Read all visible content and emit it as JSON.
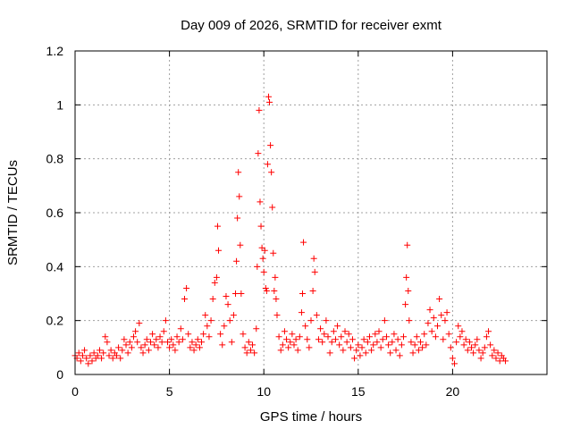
{
  "chart_data": {
    "type": "scatter",
    "title": "Day 009 of 2026, SRMTID for receiver exmt",
    "xlabel": "GPS time / hours",
    "ylabel": "SRMTID / TECUs",
    "xlim": [
      0,
      25
    ],
    "ylim": [
      0,
      1.2
    ],
    "xticks": [
      0,
      5,
      10,
      15,
      20
    ],
    "xtick_labels": [
      "0",
      "5",
      "10",
      "15",
      "20"
    ],
    "yticks": [
      0,
      0.2,
      0.4,
      0.6,
      0.8,
      1.0,
      1.2
    ],
    "ytick_labels": [
      "0",
      "0.2",
      "0.4",
      "0.6",
      "0.8",
      "1",
      "1.2"
    ],
    "grid": true,
    "marker": "+",
    "color": "#ff0000",
    "series": [
      {
        "name": "SRMTID",
        "points": [
          [
            0.0,
            0.07
          ],
          [
            0.1,
            0.06
          ],
          [
            0.2,
            0.08
          ],
          [
            0.3,
            0.05
          ],
          [
            0.4,
            0.07
          ],
          [
            0.5,
            0.09
          ],
          [
            0.6,
            0.06
          ],
          [
            0.7,
            0.04
          ],
          [
            0.8,
            0.07
          ],
          [
            0.9,
            0.05
          ],
          [
            1.0,
            0.08
          ],
          [
            1.1,
            0.06
          ],
          [
            1.2,
            0.07
          ],
          [
            1.3,
            0.09
          ],
          [
            1.4,
            0.06
          ],
          [
            1.5,
            0.08
          ],
          [
            1.6,
            0.14
          ],
          [
            1.7,
            0.12
          ],
          [
            1.8,
            0.07
          ],
          [
            1.9,
            0.09
          ],
          [
            2.0,
            0.06
          ],
          [
            2.1,
            0.08
          ],
          [
            2.2,
            0.07
          ],
          [
            2.3,
            0.1
          ],
          [
            2.4,
            0.06
          ],
          [
            2.5,
            0.09
          ],
          [
            2.6,
            0.13
          ],
          [
            2.7,
            0.11
          ],
          [
            2.8,
            0.08
          ],
          [
            2.9,
            0.12
          ],
          [
            3.0,
            0.1
          ],
          [
            3.1,
            0.14
          ],
          [
            3.2,
            0.16
          ],
          [
            3.3,
            0.12
          ],
          [
            3.4,
            0.19
          ],
          [
            3.5,
            0.1
          ],
          [
            3.6,
            0.08
          ],
          [
            3.7,
            0.11
          ],
          [
            3.8,
            0.13
          ],
          [
            3.9,
            0.09
          ],
          [
            4.0,
            0.12
          ],
          [
            4.1,
            0.15
          ],
          [
            4.2,
            0.11
          ],
          [
            4.3,
            0.13
          ],
          [
            4.4,
            0.1
          ],
          [
            4.5,
            0.14
          ],
          [
            4.6,
            0.12
          ],
          [
            4.7,
            0.16
          ],
          [
            4.8,
            0.2
          ],
          [
            4.9,
            0.12
          ],
          [
            5.0,
            0.1
          ],
          [
            5.1,
            0.13
          ],
          [
            5.2,
            0.11
          ],
          [
            5.3,
            0.09
          ],
          [
            5.4,
            0.14
          ],
          [
            5.5,
            0.12
          ],
          [
            5.6,
            0.17
          ],
          [
            5.7,
            0.13
          ],
          [
            5.8,
            0.28
          ],
          [
            5.9,
            0.32
          ],
          [
            6.0,
            0.15
          ],
          [
            6.1,
            0.1
          ],
          [
            6.2,
            0.12
          ],
          [
            6.3,
            0.09
          ],
          [
            6.4,
            0.11
          ],
          [
            6.5,
            0.13
          ],
          [
            6.6,
            0.1
          ],
          [
            6.7,
            0.12
          ],
          [
            6.8,
            0.15
          ],
          [
            6.9,
            0.22
          ],
          [
            7.0,
            0.18
          ],
          [
            7.1,
            0.14
          ],
          [
            7.2,
            0.2
          ],
          [
            7.3,
            0.28
          ],
          [
            7.4,
            0.34
          ],
          [
            7.5,
            0.36
          ],
          [
            7.55,
            0.55
          ],
          [
            7.6,
            0.46
          ],
          [
            7.7,
            0.15
          ],
          [
            7.8,
            0.11
          ],
          [
            7.9,
            0.18
          ],
          [
            8.0,
            0.29
          ],
          [
            8.1,
            0.26
          ],
          [
            8.2,
            0.2
          ],
          [
            8.3,
            0.12
          ],
          [
            8.4,
            0.22
          ],
          [
            8.5,
            0.3
          ],
          [
            8.55,
            0.42
          ],
          [
            8.6,
            0.58
          ],
          [
            8.65,
            0.75
          ],
          [
            8.7,
            0.66
          ],
          [
            8.75,
            0.48
          ],
          [
            8.8,
            0.3
          ],
          [
            8.9,
            0.15
          ],
          [
            9.0,
            0.1
          ],
          [
            9.1,
            0.08
          ],
          [
            9.2,
            0.12
          ],
          [
            9.3,
            0.09
          ],
          [
            9.4,
            0.11
          ],
          [
            9.5,
            0.08
          ],
          [
            9.6,
            0.17
          ],
          [
            9.65,
            0.4
          ],
          [
            9.7,
            0.82
          ],
          [
            9.75,
            0.98
          ],
          [
            9.8,
            0.64
          ],
          [
            9.85,
            0.55
          ],
          [
            9.9,
            0.47
          ],
          [
            9.95,
            0.43
          ],
          [
            10.0,
            0.38
          ],
          [
            10.05,
            0.46
          ],
          [
            10.1,
            0.32
          ],
          [
            10.15,
            0.31
          ],
          [
            10.2,
            0.78
          ],
          [
            10.25,
            1.03
          ],
          [
            10.3,
            1.01
          ],
          [
            10.35,
            0.85
          ],
          [
            10.4,
            0.75
          ],
          [
            10.45,
            0.62
          ],
          [
            10.5,
            0.45
          ],
          [
            10.55,
            0.31
          ],
          [
            10.6,
            0.36
          ],
          [
            10.65,
            0.28
          ],
          [
            10.7,
            0.22
          ],
          [
            10.8,
            0.14
          ],
          [
            10.9,
            0.09
          ],
          [
            11.0,
            0.11
          ],
          [
            11.1,
            0.16
          ],
          [
            11.2,
            0.13
          ],
          [
            11.3,
            0.1
          ],
          [
            11.4,
            0.12
          ],
          [
            11.5,
            0.15
          ],
          [
            11.6,
            0.11
          ],
          [
            11.7,
            0.13
          ],
          [
            11.8,
            0.09
          ],
          [
            11.9,
            0.14
          ],
          [
            12.0,
            0.23
          ],
          [
            12.05,
            0.3
          ],
          [
            12.1,
            0.49
          ],
          [
            12.2,
            0.18
          ],
          [
            12.3,
            0.13
          ],
          [
            12.4,
            0.1
          ],
          [
            12.5,
            0.2
          ],
          [
            12.6,
            0.31
          ],
          [
            12.65,
            0.43
          ],
          [
            12.7,
            0.38
          ],
          [
            12.8,
            0.22
          ],
          [
            12.9,
            0.13
          ],
          [
            13.0,
            0.17
          ],
          [
            13.1,
            0.12
          ],
          [
            13.2,
            0.15
          ],
          [
            13.3,
            0.2
          ],
          [
            13.4,
            0.14
          ],
          [
            13.5,
            0.08
          ],
          [
            13.6,
            0.12
          ],
          [
            13.7,
            0.16
          ],
          [
            13.8,
            0.13
          ],
          [
            13.9,
            0.18
          ],
          [
            14.0,
            0.11
          ],
          [
            14.1,
            0.14
          ],
          [
            14.2,
            0.09
          ],
          [
            14.3,
            0.16
          ],
          [
            14.4,
            0.12
          ],
          [
            14.5,
            0.15
          ],
          [
            14.6,
            0.1
          ],
          [
            14.7,
            0.13
          ],
          [
            14.8,
            0.06
          ],
          [
            14.9,
            0.09
          ],
          [
            15.0,
            0.11
          ],
          [
            15.1,
            0.07
          ],
          [
            15.2,
            0.1
          ],
          [
            15.3,
            0.13
          ],
          [
            15.4,
            0.08
          ],
          [
            15.5,
            0.12
          ],
          [
            15.6,
            0.14
          ],
          [
            15.7,
            0.09
          ],
          [
            15.8,
            0.11
          ],
          [
            15.9,
            0.15
          ],
          [
            16.0,
            0.12
          ],
          [
            16.1,
            0.16
          ],
          [
            16.2,
            0.1
          ],
          [
            16.3,
            0.13
          ],
          [
            16.4,
            0.2
          ],
          [
            16.5,
            0.14
          ],
          [
            16.6,
            0.11
          ],
          [
            16.7,
            0.08
          ],
          [
            16.8,
            0.12
          ],
          [
            16.9,
            0.15
          ],
          [
            17.0,
            0.09
          ],
          [
            17.1,
            0.13
          ],
          [
            17.2,
            0.07
          ],
          [
            17.3,
            0.11
          ],
          [
            17.4,
            0.14
          ],
          [
            17.5,
            0.26
          ],
          [
            17.55,
            0.36
          ],
          [
            17.6,
            0.48
          ],
          [
            17.65,
            0.31
          ],
          [
            17.7,
            0.2
          ],
          [
            17.8,
            0.12
          ],
          [
            17.9,
            0.08
          ],
          [
            18.0,
            0.11
          ],
          [
            18.1,
            0.14
          ],
          [
            18.2,
            0.09
          ],
          [
            18.3,
            0.12
          ],
          [
            18.4,
            0.1
          ],
          [
            18.5,
            0.15
          ],
          [
            18.6,
            0.11
          ],
          [
            18.7,
            0.19
          ],
          [
            18.8,
            0.24
          ],
          [
            18.9,
            0.16
          ],
          [
            19.0,
            0.21
          ],
          [
            19.1,
            0.14
          ],
          [
            19.2,
            0.18
          ],
          [
            19.3,
            0.28
          ],
          [
            19.4,
            0.22
          ],
          [
            19.5,
            0.13
          ],
          [
            19.6,
            0.2
          ],
          [
            19.7,
            0.23
          ],
          [
            19.8,
            0.15
          ],
          [
            19.9,
            0.1
          ],
          [
            20.0,
            0.06
          ],
          [
            20.1,
            0.04
          ],
          [
            20.2,
            0.12
          ],
          [
            20.3,
            0.18
          ],
          [
            20.4,
            0.14
          ],
          [
            20.5,
            0.16
          ],
          [
            20.6,
            0.11
          ],
          [
            20.7,
            0.13
          ],
          [
            20.8,
            0.09
          ],
          [
            20.9,
            0.12
          ],
          [
            21.0,
            0.1
          ],
          [
            21.1,
            0.08
          ],
          [
            21.2,
            0.11
          ],
          [
            21.3,
            0.13
          ],
          [
            21.4,
            0.09
          ],
          [
            21.5,
            0.06
          ],
          [
            21.6,
            0.08
          ],
          [
            21.7,
            0.1
          ],
          [
            21.8,
            0.14
          ],
          [
            21.9,
            0.16
          ],
          [
            22.0,
            0.11
          ],
          [
            22.1,
            0.07
          ],
          [
            22.2,
            0.09
          ],
          [
            22.3,
            0.06
          ],
          [
            22.4,
            0.08
          ],
          [
            22.5,
            0.05
          ],
          [
            22.6,
            0.07
          ],
          [
            22.7,
            0.06
          ],
          [
            22.8,
            0.05
          ]
        ]
      }
    ]
  }
}
